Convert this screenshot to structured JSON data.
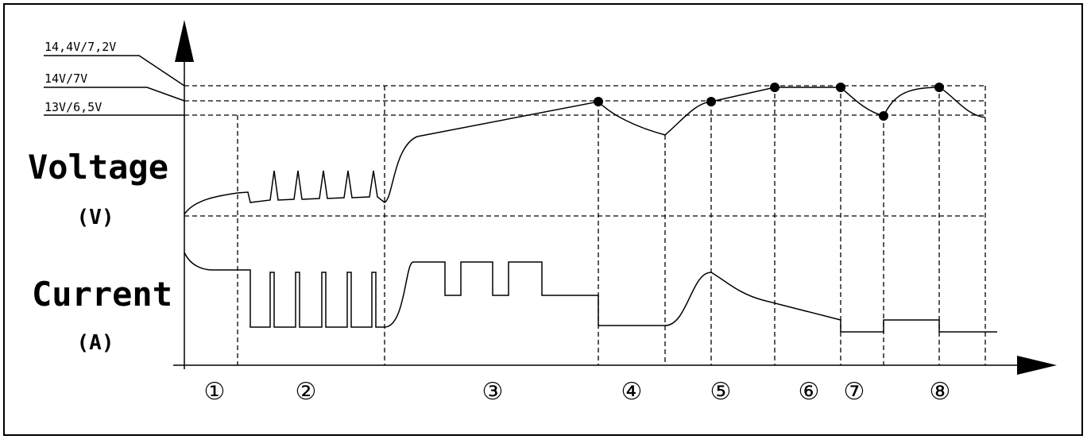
{
  "levels": [
    "14,4V/7,2V",
    "14V/7V",
    "13V/6,5V"
  ],
  "voltage": {
    "label": "Voltage",
    "unit": "(V)"
  },
  "current": {
    "label": "Current",
    "unit": "(A)"
  },
  "stages": [
    "①",
    "②",
    "③",
    "④",
    "⑤",
    "⑥",
    "⑦",
    "⑧"
  ]
}
